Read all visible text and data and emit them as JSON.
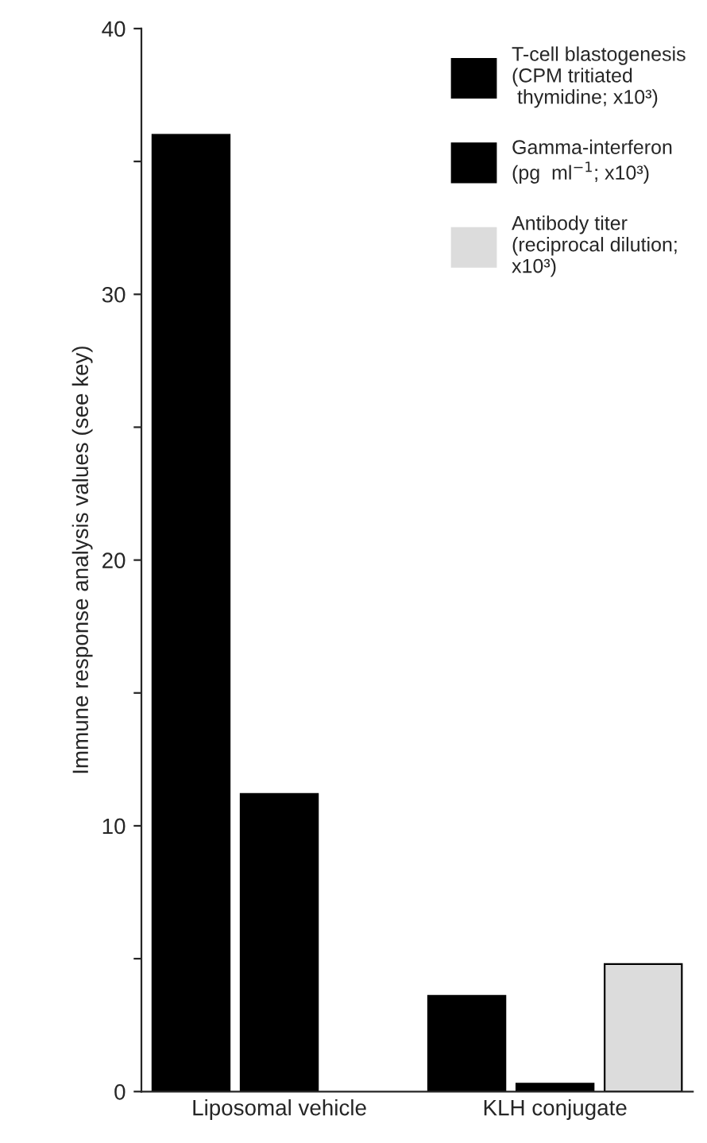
{
  "chart_data": {
    "type": "bar",
    "ylabel": "Immune response analysis values (see key)",
    "categories": [
      "Liposomal vehicle",
      "KLH conjugate"
    ],
    "series": [
      {
        "name": "T-cell blastogenesis\n(CPM tritiated\n thymidine; x10³)",
        "color": "#000000",
        "values": [
          36,
          3.6
        ]
      },
      {
        "name": "Gamma-interferon\n(pg  ml$^{−1}$; x10³)",
        "color": "#000000",
        "values": [
          11.2,
          0.3
        ]
      },
      {
        "name": "Antibody titer\n(reciprocal dilution;\nx10³)",
        "color": "#dcdcdc",
        "values": [
          null,
          4.8
        ]
      }
    ],
    "ylim": [
      0,
      40
    ],
    "yticks": [
      0,
      {
        "value": 5,
        "label": null
      },
      10,
      {
        "value": 15,
        "label": null
      },
      20,
      {
        "value": 25,
        "label": null
      },
      30,
      {
        "value": 35,
        "label": null
      },
      40
    ],
    "legend": "top right",
    "grid": false
  }
}
